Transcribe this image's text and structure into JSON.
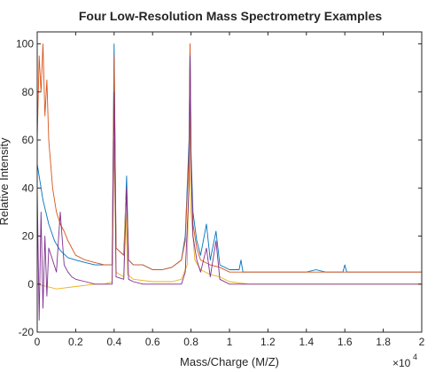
{
  "chart_data": {
    "type": "line",
    "title": "Four Low-Resolution Mass Spectrometry Examples",
    "xlabel": "Mass/Charge (M/Z)",
    "ylabel": "Relative Intensity",
    "x_exponent_base": "×10",
    "x_exponent_power": "4",
    "xlim": [
      0,
      20000
    ],
    "ylim": [
      -20,
      105
    ],
    "x_tick_values": [
      0,
      2000,
      4000,
      6000,
      8000,
      10000,
      12000,
      14000,
      16000,
      18000,
      20000
    ],
    "x_tick_labels": [
      "0",
      "0.2",
      "0.4",
      "0.6",
      "0.8",
      "1",
      "1.2",
      "1.4",
      "1.6",
      "1.8",
      "2"
    ],
    "y_tick_values": [
      -20,
      0,
      20,
      40,
      60,
      80,
      100
    ],
    "y_tick_labels": [
      "-20",
      "0",
      "20",
      "40",
      "60",
      "80",
      "100"
    ],
    "grid": false,
    "series_colors": [
      "#0072BD",
      "#D95319",
      "#EDB120",
      "#7E2F8E"
    ],
    "series": [
      {
        "x": [
          0,
          300,
          600,
          900,
          1200,
          1600,
          2000,
          2500,
          3000,
          3500,
          3900,
          4000,
          4100,
          4500,
          4650,
          4750,
          5000,
          5500,
          6000,
          6500,
          7000,
          7500,
          7700,
          7900,
          7950,
          8000,
          8100,
          8300,
          8500,
          8800,
          9000,
          9300,
          9500,
          10000,
          10500,
          10600,
          10700,
          11000,
          12000,
          13000,
          14000,
          14500,
          15000,
          15900,
          16000,
          16100,
          17000,
          18000,
          19000,
          20000
        ],
        "y": [
          50,
          35,
          25,
          18,
          14,
          11,
          10,
          9,
          8,
          8,
          8,
          100,
          15,
          12,
          45,
          10,
          8,
          8,
          6,
          6,
          7,
          10,
          20,
          60,
          100,
          55,
          30,
          18,
          12,
          25,
          10,
          22,
          8,
          6,
          6,
          10,
          5,
          5,
          5,
          5,
          5,
          6,
          5,
          5,
          8,
          5,
          5,
          5,
          5,
          5
        ]
      },
      {
        "x": [
          0,
          100,
          200,
          300,
          400,
          500,
          600,
          700,
          800,
          900,
          1000,
          1200,
          1400,
          1600,
          1800,
          2000,
          2500,
          3000,
          3500,
          3900,
          4000,
          4100,
          4500,
          4650,
          4750,
          5000,
          5500,
          6000,
          6500,
          7000,
          7500,
          7700,
          7900,
          7950,
          8000,
          8100,
          8300,
          8500,
          9000,
          9500,
          10000,
          11000,
          12000,
          13000,
          14000,
          15000,
          16000,
          17000,
          18000,
          19000,
          20000
        ],
        "y": [
          60,
          95,
          80,
          100,
          70,
          85,
          60,
          50,
          40,
          35,
          30,
          25,
          22,
          18,
          15,
          12,
          10,
          9,
          8,
          8,
          95,
          15,
          12,
          40,
          10,
          8,
          8,
          6,
          6,
          7,
          10,
          18,
          55,
          100,
          50,
          25,
          15,
          10,
          8,
          7,
          5,
          5,
          5,
          5,
          5,
          5,
          5,
          5,
          5,
          5,
          5
        ]
      },
      {
        "x": [
          0,
          1000,
          2000,
          3000,
          3500,
          3900,
          4000,
          4100,
          4500,
          4600,
          4700,
          5000,
          6000,
          7000,
          7500,
          7800,
          7950,
          8000,
          8200,
          8500,
          9000,
          9500,
          10000,
          11000,
          12000,
          14000,
          16000,
          18000,
          20000
        ],
        "y": [
          0,
          -2,
          -1,
          0,
          0,
          1,
          60,
          5,
          3,
          35,
          4,
          2,
          1,
          1,
          2,
          8,
          70,
          30,
          10,
          6,
          4,
          3,
          1,
          0,
          0,
          0,
          0,
          0,
          0
        ]
      },
      {
        "x": [
          0,
          100,
          200,
          300,
          400,
          500,
          600,
          800,
          1000,
          1200,
          1400,
          1600,
          1800,
          2000,
          2500,
          3000,
          3500,
          3900,
          4000,
          4100,
          4500,
          4650,
          4750,
          5000,
          5500,
          6000,
          6500,
          7000,
          7500,
          7700,
          7900,
          7950,
          8000,
          8100,
          8300,
          8500,
          8800,
          9000,
          9300,
          9500,
          10000,
          11000,
          12000,
          13000,
          14000,
          15000,
          16000,
          17000,
          18000,
          19000,
          20000
        ],
        "y": [
          40,
          -15,
          30,
          -10,
          20,
          -5,
          15,
          10,
          5,
          30,
          8,
          5,
          3,
          2,
          1,
          0,
          0,
          0,
          80,
          3,
          2,
          40,
          2,
          1,
          0,
          0,
          0,
          0,
          0,
          5,
          40,
          95,
          50,
          20,
          10,
          5,
          15,
          3,
          18,
          2,
          0,
          0,
          0,
          0,
          0,
          0,
          0,
          0,
          0,
          0,
          0
        ]
      }
    ]
  }
}
